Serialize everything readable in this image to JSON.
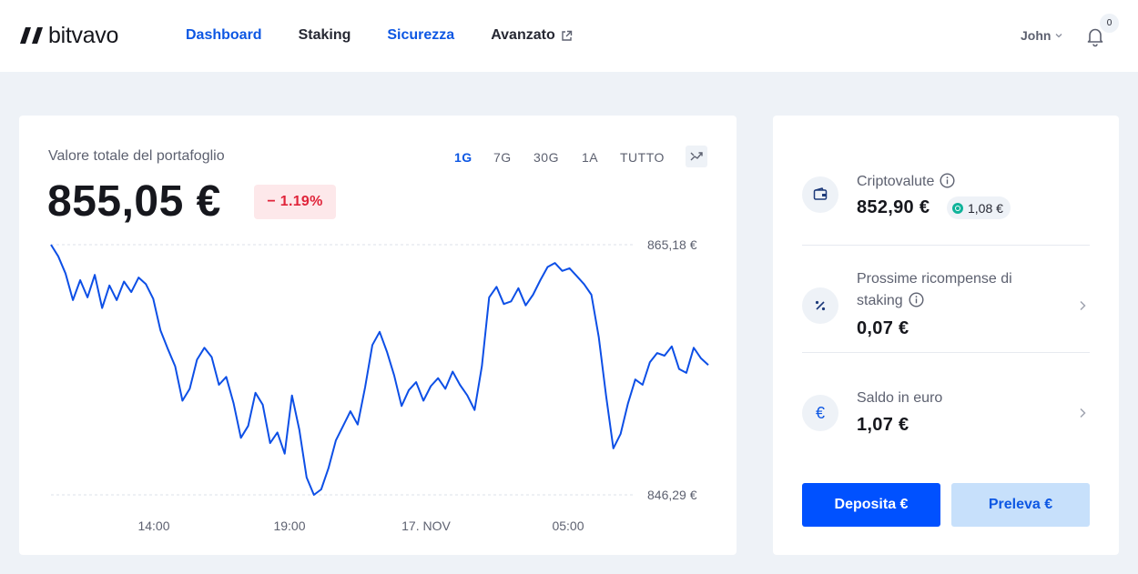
{
  "brand": {
    "name": "bitvavo"
  },
  "nav": {
    "items": [
      {
        "label": "Dashboard",
        "active": true
      },
      {
        "label": "Staking",
        "active": false
      },
      {
        "label": "Sicurezza",
        "active": true
      },
      {
        "label": "Avanzato",
        "external": true
      }
    ]
  },
  "user": {
    "name": "John"
  },
  "notifications": {
    "count": "0"
  },
  "portfolio": {
    "label": "Valore totale del portafoglio",
    "value": "855,05 €",
    "change": "− 1.19%",
    "periods": [
      "1G",
      "7G",
      "30G",
      "1A",
      "TUTTO"
    ],
    "selected_period": "1G"
  },
  "chart_data": {
    "type": "line",
    "title": "",
    "xlabel": "",
    "ylabel": "",
    "ylim": [
      846.29,
      865.18
    ],
    "y_reference_labels": [
      "865,18 €",
      "846,29 €"
    ],
    "x_tick_labels": [
      "14:00",
      "19:00",
      "17. NOV",
      "05:00"
    ],
    "series": [
      {
        "color": "#0d4fe6",
        "values": [
          865.18,
          864.3,
          863.0,
          861.0,
          862.5,
          861.2,
          862.9,
          860.4,
          862.1,
          861.0,
          862.4,
          861.6,
          862.7,
          862.2,
          861.1,
          858.7,
          857.3,
          856.0,
          853.4,
          854.3,
          856.5,
          857.4,
          856.7,
          854.6,
          855.2,
          853.2,
          850.6,
          851.5,
          854.0,
          853.1,
          850.2,
          851.0,
          849.4,
          853.8,
          851.2,
          847.6,
          846.29,
          846.7,
          848.3,
          850.4,
          851.5,
          852.6,
          851.6,
          854.4,
          857.6,
          858.6,
          857.1,
          855.3,
          853.0,
          854.2,
          854.8,
          853.4,
          854.5,
          855.1,
          854.3,
          855.6,
          854.6,
          853.8,
          852.7,
          856.0,
          861.2,
          862.0,
          860.7,
          860.9,
          861.9,
          860.6,
          861.4,
          862.5,
          863.5,
          863.8,
          863.2,
          863.4,
          862.8,
          862.2,
          861.4,
          858.2,
          853.8,
          849.8,
          850.9,
          853.2,
          855.0,
          854.6,
          856.3,
          857.0,
          856.8,
          857.5,
          855.8,
          855.5,
          857.4,
          856.6,
          856.1
        ]
      }
    ],
    "grid": false,
    "legend": "none"
  },
  "side": {
    "crypto": {
      "title": "Criptovalute",
      "value": "852,90 €",
      "staking_pill": "1,08 €"
    },
    "rewards": {
      "title_line1": "Prossime ricompense di",
      "title_line2": "staking",
      "value": "0,07 €"
    },
    "euro": {
      "title": "Saldo in euro",
      "value": "1,07 €",
      "icon_char": "€"
    },
    "deposit_label": "Deposita €",
    "withdraw_label": "Preleva €"
  },
  "colors": {
    "accent": "#0d57e3",
    "primary_button": "#0051ff",
    "secondary_button": "#c7e0fb",
    "negative": "#e0243a",
    "staking_green": "#10b39a"
  }
}
